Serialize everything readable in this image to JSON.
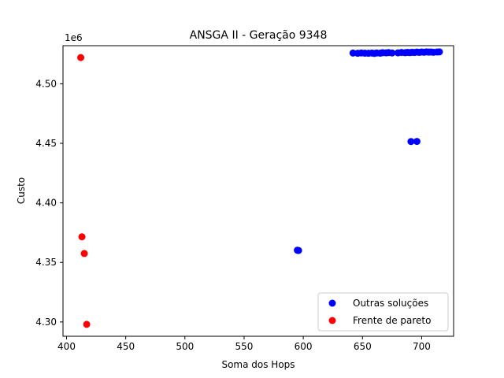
{
  "chart_data": {
    "type": "scatter",
    "title": "ANSGA II - Geração 9348",
    "xlabel": "Soma dos Hops",
    "ylabel": "Custo",
    "y_offset_label": "1e6",
    "xlim": [
      397,
      727
    ],
    "ylim": [
      4288000,
      4532000
    ],
    "xticks": [
      400,
      450,
      500,
      550,
      600,
      650,
      700
    ],
    "yticks": [
      4300000,
      4350000,
      4400000,
      4450000,
      4500000
    ],
    "ytick_labels": [
      "4.30",
      "4.35",
      "4.40",
      "4.45",
      "4.50"
    ],
    "grid": false,
    "legend_position": "lower-right",
    "series": [
      {
        "name": "Outras soluções",
        "color": "#0000ff",
        "points": [
          [
            642,
            4525800
          ],
          [
            646,
            4525600
          ],
          [
            649,
            4525900
          ],
          [
            652,
            4525700
          ],
          [
            655,
            4525600
          ],
          [
            658,
            4525800
          ],
          [
            660,
            4525500
          ],
          [
            662,
            4525900
          ],
          [
            665,
            4525700
          ],
          [
            667,
            4526100
          ],
          [
            670,
            4526000
          ],
          [
            672,
            4526200
          ],
          [
            675,
            4525900
          ],
          [
            680,
            4526000
          ],
          [
            683,
            4526300
          ],
          [
            686,
            4526100
          ],
          [
            688,
            4526400
          ],
          [
            690,
            4526200
          ],
          [
            692,
            4526500
          ],
          [
            694,
            4526300
          ],
          [
            696,
            4526600
          ],
          [
            698,
            4526400
          ],
          [
            700,
            4526700
          ],
          [
            702,
            4526500
          ],
          [
            704,
            4526800
          ],
          [
            706,
            4526600
          ],
          [
            708,
            4526700
          ],
          [
            710,
            4526500
          ],
          [
            713,
            4526700
          ],
          [
            715,
            4526800
          ],
          [
            691,
            4451500
          ],
          [
            696,
            4451600
          ],
          [
            595,
            4360200
          ],
          [
            596,
            4360000
          ]
        ]
      },
      {
        "name": "Frente de pareto",
        "color": "#ff0000",
        "points": [
          [
            412,
            4522000
          ],
          [
            413,
            4371500
          ],
          [
            415,
            4357500
          ],
          [
            417,
            4298000
          ]
        ]
      }
    ]
  }
}
